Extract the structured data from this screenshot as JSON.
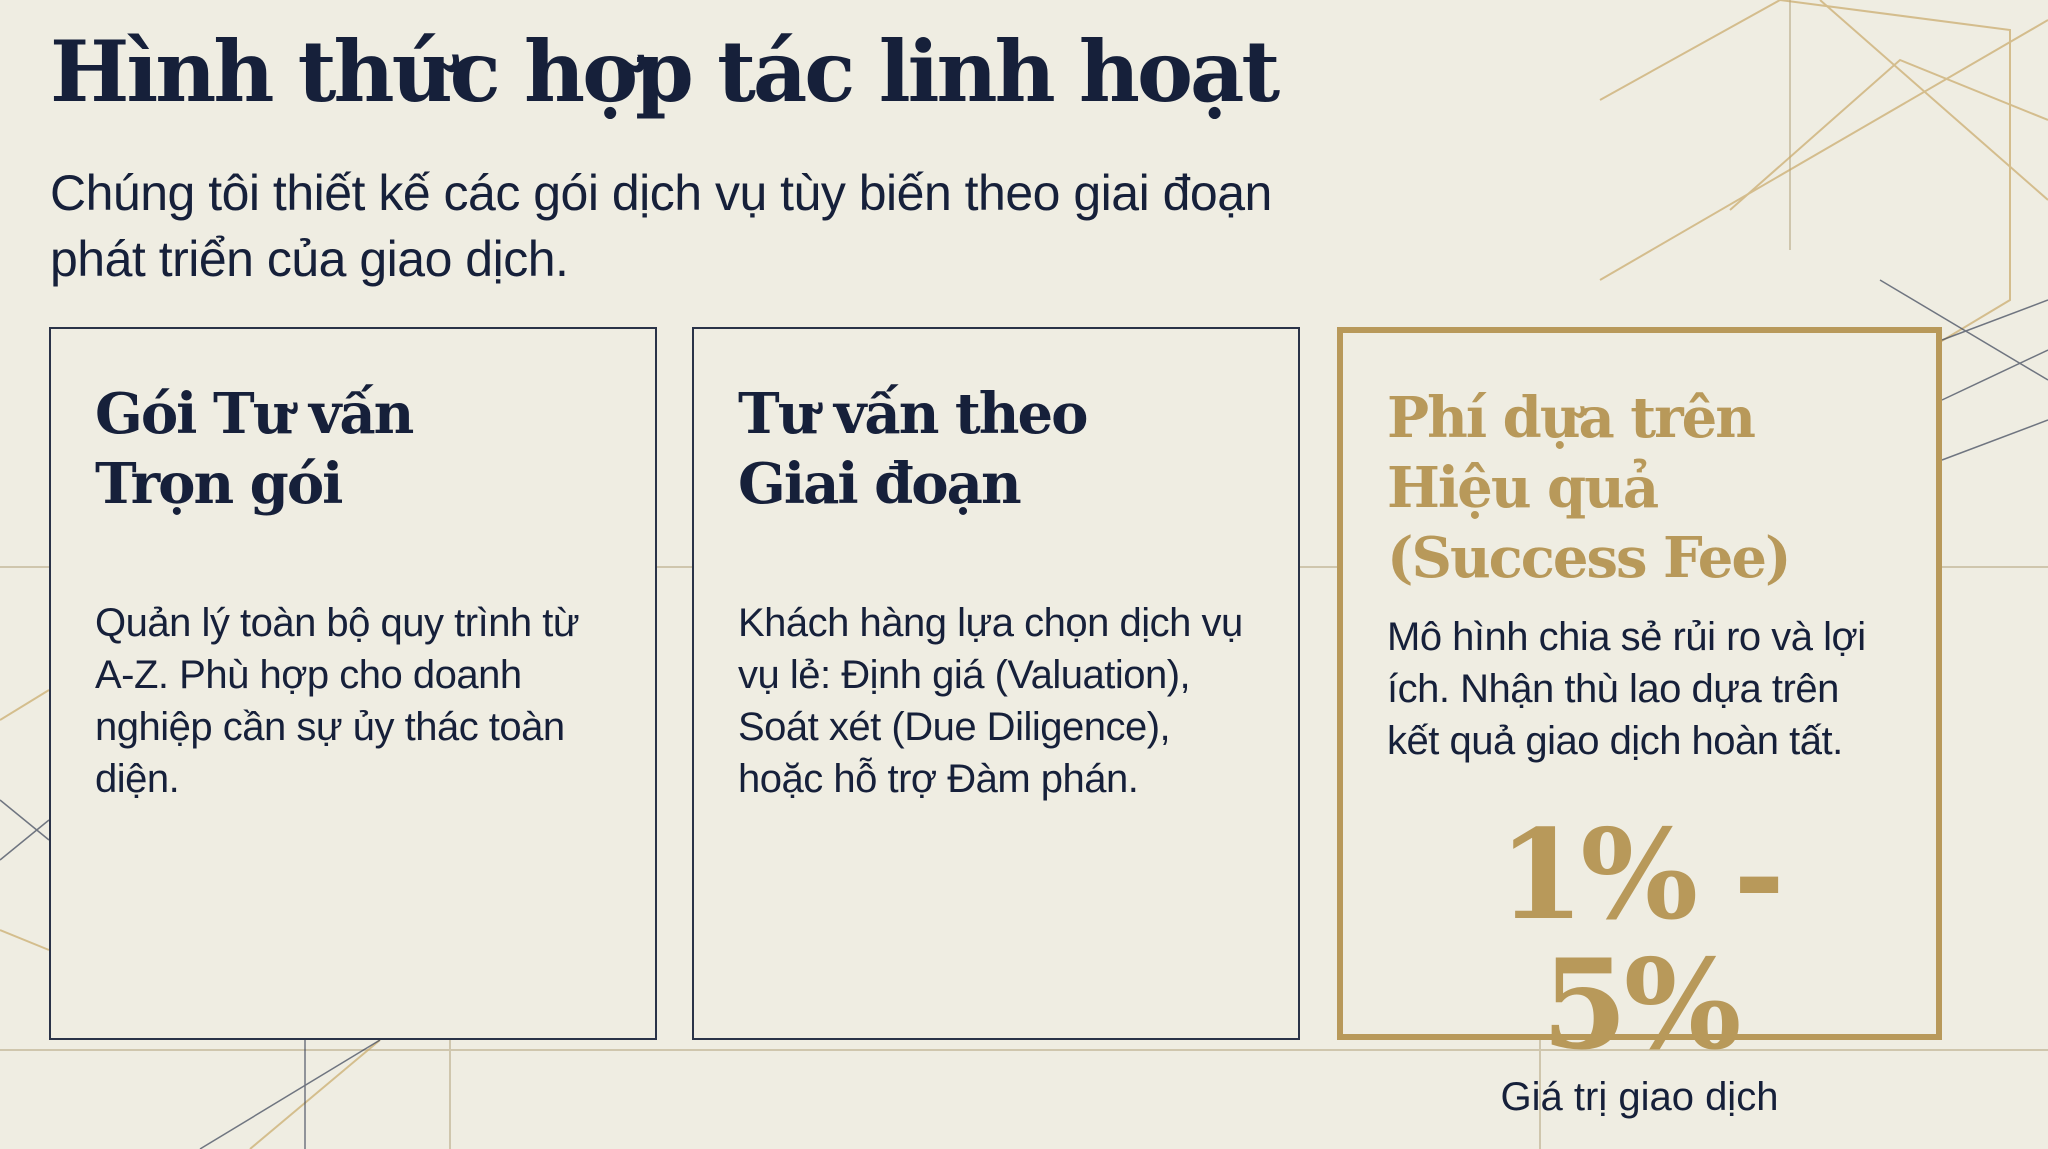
{
  "header": {
    "title": "Hình thức hợp tác linh hoạt",
    "subtitle": "Chúng tôi thiết kế các gói dịch vụ tùy biến theo giai đoạn phát triển của giao dịch."
  },
  "cards": [
    {
      "title": "Gói Tư vấn Trọn gói",
      "body": "Quản lý toàn bộ quy trình từ A-Z. Phù hợp cho doanh nghiệp cần sự ủy thác toàn diện."
    },
    {
      "title": "Tư vấn theo Giai đoạn",
      "body": "Khách hàng lựa chọn dịch vụ vụ lẻ: Định giá (Valuation), Soát xét (Due Diligence), hoặc hỗ trợ Đàm phán."
    },
    {
      "title": "Phí dựa trên Hiệu quả (Success Fee)",
      "body": "Mô hình chia sẻ rủi ro và lợi ích. Nhận thù lao dựa trên kết quả giao dịch hoàn tất.",
      "range": "1% - 5%",
      "range_label": "Giá trị giao dịch"
    }
  ],
  "colors": {
    "navy": "#16203a",
    "gold": "#b8995a",
    "background": "#efede2"
  }
}
